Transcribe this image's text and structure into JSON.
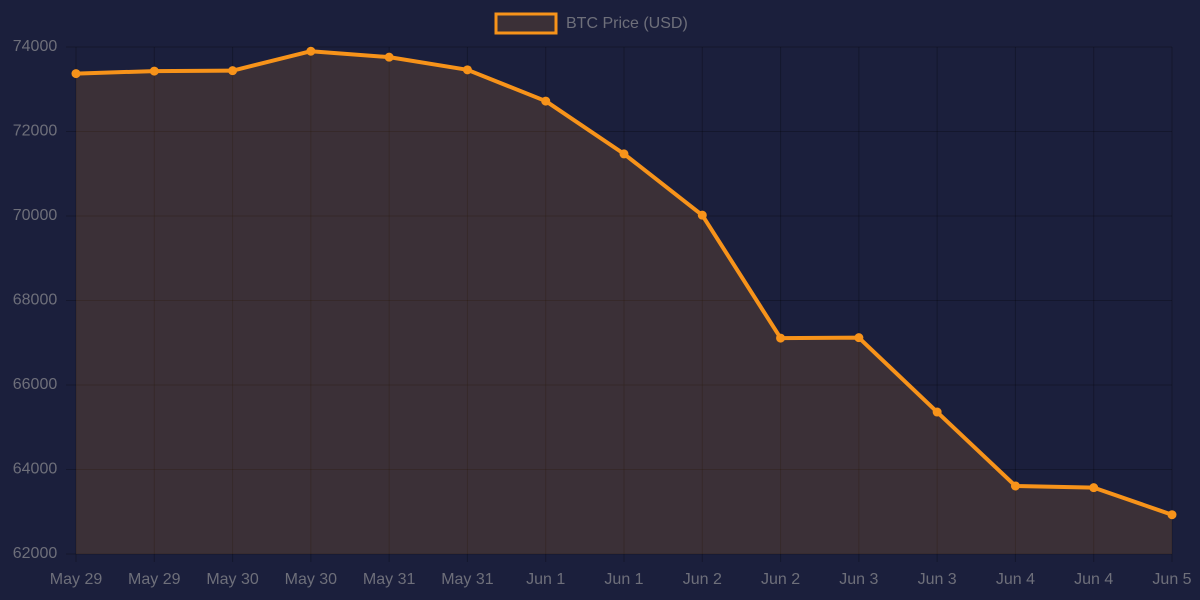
{
  "chart_data": {
    "type": "line",
    "categories": [
      "May 29",
      "May 29",
      "May 30",
      "May 30",
      "May 31",
      "May 31",
      "Jun 1",
      "Jun 1",
      "Jun 2",
      "Jun 2",
      "Jun 3",
      "Jun 3",
      "Jun 4",
      "Jun 4",
      "Jun 5"
    ],
    "series": [
      {
        "name": "BTC Price (USD)",
        "color": "#f7931a",
        "values": [
          73370,
          73430,
          73440,
          73900,
          73760,
          73460,
          72720,
          71470,
          70020,
          67110,
          67120,
          65360,
          63610,
          63570,
          62930
        ]
      }
    ],
    "ylim": [
      62000,
      74000
    ],
    "yticks": [
      62000,
      64000,
      66000,
      68000,
      70000,
      72000,
      74000
    ],
    "grid": true,
    "fill": true,
    "legend": "top"
  }
}
